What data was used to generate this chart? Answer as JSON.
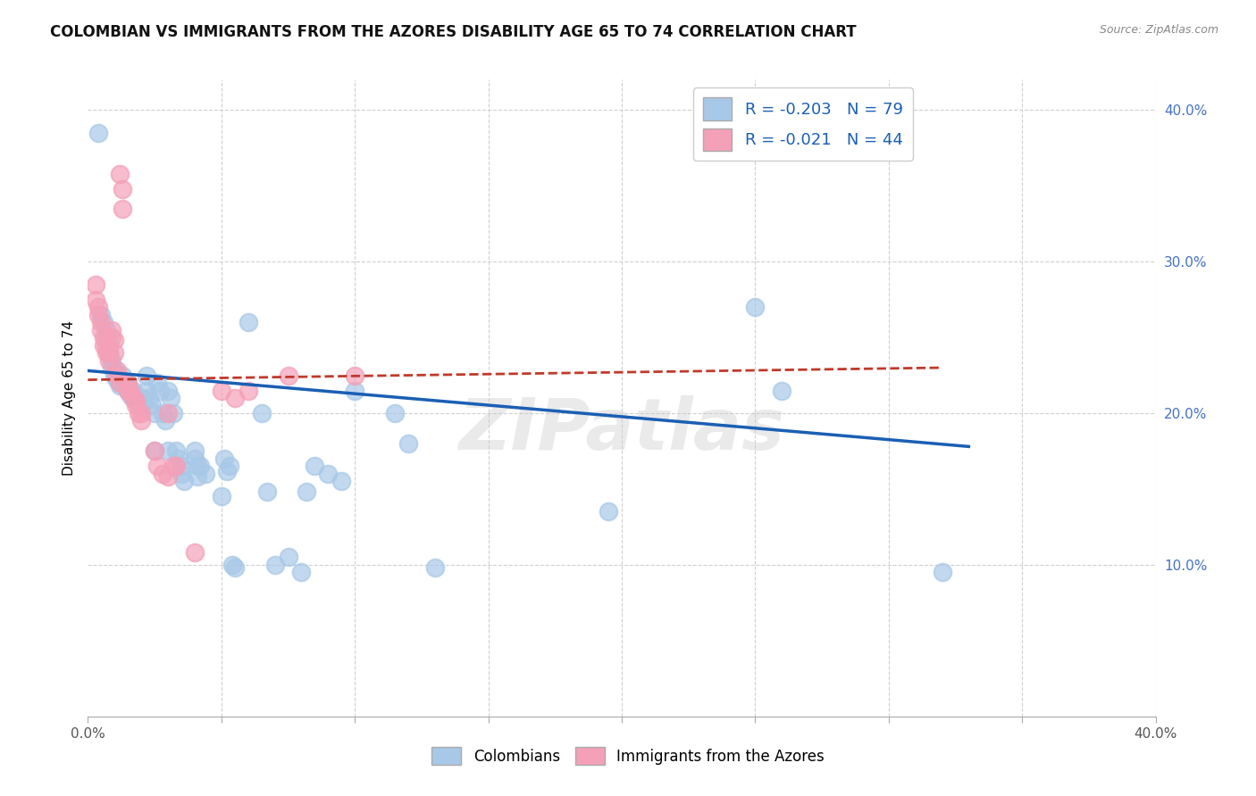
{
  "title": "COLOMBIAN VS IMMIGRANTS FROM THE AZORES DISABILITY AGE 65 TO 74 CORRELATION CHART",
  "source": "Source: ZipAtlas.com",
  "ylabel": "Disability Age 65 to 74",
  "xlim": [
    0.0,
    0.4
  ],
  "ylim": [
    0.0,
    0.42
  ],
  "colombian_R": "-0.203",
  "colombian_N": "79",
  "azores_R": "-0.021",
  "azores_N": "44",
  "colombian_color": "#a8c8e8",
  "azores_color": "#f4a0b8",
  "colombian_line_color": "#1a5fb4",
  "azores_line_color": "#c0392b",
  "colombian_scatter": [
    [
      0.004,
      0.385
    ],
    [
      0.005,
      0.265
    ],
    [
      0.006,
      0.26
    ],
    [
      0.007,
      0.255
    ],
    [
      0.007,
      0.25
    ],
    [
      0.008,
      0.245
    ],
    [
      0.008,
      0.24
    ],
    [
      0.009,
      0.235
    ],
    [
      0.009,
      0.23
    ],
    [
      0.01,
      0.228
    ],
    [
      0.01,
      0.225
    ],
    [
      0.011,
      0.225
    ],
    [
      0.011,
      0.222
    ],
    [
      0.012,
      0.22
    ],
    [
      0.012,
      0.218
    ],
    [
      0.013,
      0.225
    ],
    [
      0.013,
      0.222
    ],
    [
      0.014,
      0.22
    ],
    [
      0.014,
      0.218
    ],
    [
      0.015,
      0.218
    ],
    [
      0.015,
      0.215
    ],
    [
      0.016,
      0.215
    ],
    [
      0.016,
      0.212
    ],
    [
      0.017,
      0.215
    ],
    [
      0.017,
      0.21
    ],
    [
      0.018,
      0.212
    ],
    [
      0.018,
      0.208
    ],
    [
      0.019,
      0.21
    ],
    [
      0.02,
      0.21
    ],
    [
      0.02,
      0.205
    ],
    [
      0.021,
      0.208
    ],
    [
      0.022,
      0.225
    ],
    [
      0.022,
      0.215
    ],
    [
      0.023,
      0.21
    ],
    [
      0.024,
      0.205
    ],
    [
      0.025,
      0.2
    ],
    [
      0.025,
      0.175
    ],
    [
      0.026,
      0.22
    ],
    [
      0.027,
      0.215
    ],
    [
      0.028,
      0.2
    ],
    [
      0.029,
      0.195
    ],
    [
      0.03,
      0.175
    ],
    [
      0.03,
      0.215
    ],
    [
      0.031,
      0.21
    ],
    [
      0.032,
      0.2
    ],
    [
      0.033,
      0.175
    ],
    [
      0.034,
      0.17
    ],
    [
      0.035,
      0.165
    ],
    [
      0.035,
      0.16
    ],
    [
      0.036,
      0.155
    ],
    [
      0.04,
      0.175
    ],
    [
      0.04,
      0.17
    ],
    [
      0.041,
      0.165
    ],
    [
      0.041,
      0.158
    ],
    [
      0.042,
      0.165
    ],
    [
      0.044,
      0.16
    ],
    [
      0.05,
      0.145
    ],
    [
      0.051,
      0.17
    ],
    [
      0.052,
      0.162
    ],
    [
      0.053,
      0.165
    ],
    [
      0.054,
      0.1
    ],
    [
      0.055,
      0.098
    ],
    [
      0.06,
      0.26
    ],
    [
      0.065,
      0.2
    ],
    [
      0.067,
      0.148
    ],
    [
      0.07,
      0.1
    ],
    [
      0.075,
      0.105
    ],
    [
      0.08,
      0.095
    ],
    [
      0.082,
      0.148
    ],
    [
      0.085,
      0.165
    ],
    [
      0.09,
      0.16
    ],
    [
      0.095,
      0.155
    ],
    [
      0.1,
      0.215
    ],
    [
      0.115,
      0.2
    ],
    [
      0.12,
      0.18
    ],
    [
      0.13,
      0.098
    ],
    [
      0.195,
      0.135
    ],
    [
      0.25,
      0.27
    ],
    [
      0.26,
      0.215
    ],
    [
      0.32,
      0.095
    ]
  ],
  "azores_scatter": [
    [
      0.003,
      0.285
    ],
    [
      0.003,
      0.275
    ],
    [
      0.004,
      0.27
    ],
    [
      0.004,
      0.265
    ],
    [
      0.005,
      0.26
    ],
    [
      0.005,
      0.255
    ],
    [
      0.006,
      0.25
    ],
    [
      0.006,
      0.245
    ],
    [
      0.007,
      0.245
    ],
    [
      0.007,
      0.24
    ],
    [
      0.008,
      0.24
    ],
    [
      0.008,
      0.235
    ],
    [
      0.009,
      0.255
    ],
    [
      0.009,
      0.25
    ],
    [
      0.01,
      0.248
    ],
    [
      0.01,
      0.24
    ],
    [
      0.011,
      0.228
    ],
    [
      0.011,
      0.225
    ],
    [
      0.012,
      0.22
    ],
    [
      0.012,
      0.358
    ],
    [
      0.013,
      0.348
    ],
    [
      0.013,
      0.335
    ],
    [
      0.015,
      0.22
    ],
    [
      0.015,
      0.215
    ],
    [
      0.016,
      0.215
    ],
    [
      0.017,
      0.21
    ],
    [
      0.018,
      0.208
    ],
    [
      0.018,
      0.205
    ],
    [
      0.019,
      0.2
    ],
    [
      0.02,
      0.2
    ],
    [
      0.02,
      0.195
    ],
    [
      0.025,
      0.175
    ],
    [
      0.026,
      0.165
    ],
    [
      0.028,
      0.16
    ],
    [
      0.03,
      0.158
    ],
    [
      0.03,
      0.2
    ],
    [
      0.032,
      0.165
    ],
    [
      0.033,
      0.165
    ],
    [
      0.04,
      0.108
    ],
    [
      0.05,
      0.215
    ],
    [
      0.055,
      0.21
    ],
    [
      0.06,
      0.215
    ],
    [
      0.075,
      0.225
    ],
    [
      0.1,
      0.225
    ]
  ],
  "colombian_trendline_x": [
    0.0,
    0.33
  ],
  "colombian_trendline_y": [
    0.228,
    0.178
  ],
  "azores_trendline_x": [
    0.0,
    0.32
  ],
  "azores_trendline_y": [
    0.222,
    0.23
  ],
  "background_color": "#ffffff",
  "grid_color": "#d0d0d0",
  "ytick_color": "#4472c4"
}
